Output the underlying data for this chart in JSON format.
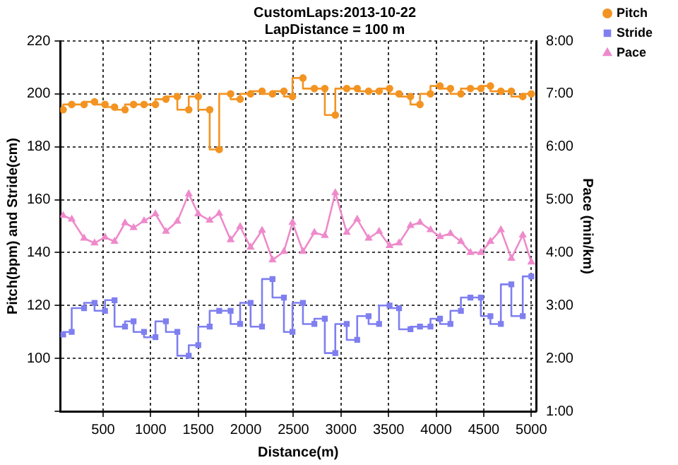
{
  "chart_data": {
    "type": "step",
    "title": "CustomLaps:2013-10-22",
    "subtitle": "LapDistance = 100 m",
    "xlabel": "Distance(m)",
    "ylabel": "Pitch(bpm) and Stride(cm)",
    "y2label": "Pace (min/km)",
    "x": [
      80,
      170,
      300,
      410,
      520,
      620,
      730,
      820,
      930,
      1050,
      1160,
      1280,
      1400,
      1500,
      1620,
      1720,
      1840,
      1940,
      2050,
      2170,
      2280,
      2400,
      2490,
      2600,
      2720,
      2830,
      2940,
      3060,
      3170,
      3290,
      3400,
      3510,
      3610,
      3730,
      3830,
      3940,
      4040,
      4150,
      4260,
      4360,
      4470,
      4570,
      4680,
      4790,
      4910,
      5000
    ],
    "series": [
      {
        "name": "Pitch",
        "color": "#f39422",
        "marker": "circle",
        "values": [
          194,
          196,
          196,
          197,
          196,
          195,
          194,
          196,
          196,
          196,
          198,
          199,
          194,
          199,
          194,
          179,
          200,
          198,
          200,
          201,
          200,
          201,
          199,
          206,
          202,
          202,
          192,
          202,
          202,
          201,
          201,
          202,
          200,
          199,
          196,
          200,
          203,
          202,
          200,
          202,
          202,
          203,
          201,
          201,
          199,
          200
        ]
      },
      {
        "name": "Stride",
        "color": "#7f7ff0",
        "marker": "square",
        "values": [
          109,
          110,
          119,
          121,
          118,
          122,
          112,
          114,
          110,
          108,
          114,
          110,
          101,
          105,
          112,
          118,
          118,
          113,
          121,
          112,
          130,
          123,
          110,
          121,
          113,
          115,
          102,
          113,
          107,
          116,
          113,
          120,
          119,
          111,
          112,
          112,
          115,
          113,
          118,
          123,
          123,
          116,
          113,
          128,
          116,
          131
        ]
      },
      {
        "name": "Pace",
        "type": "line",
        "axis": "y2",
        "color": "#ee8acb",
        "marker": "triangle",
        "values": [
          4.7,
          4.63,
          4.27,
          4.18,
          4.29,
          4.21,
          4.56,
          4.47,
          4.6,
          4.73,
          4.4,
          4.59,
          5.11,
          4.73,
          4.61,
          4.74,
          4.24,
          4.49,
          4.1,
          4.42,
          3.86,
          4.02,
          4.57,
          4.02,
          4.38,
          4.32,
          5.13,
          4.38,
          4.63,
          4.27,
          4.4,
          4.13,
          4.18,
          4.51,
          4.57,
          4.43,
          4.3,
          4.36,
          4.21,
          4.0,
          4.0,
          4.21,
          4.43,
          3.89,
          4.33,
          3.82
        ]
      }
    ],
    "xlim": [
      50,
      5050
    ],
    "xticks": [
      500,
      1000,
      1500,
      2000,
      2500,
      3000,
      3500,
      4000,
      4500,
      5000
    ],
    "ylim": [
      80,
      220
    ],
    "yticks": [
      {
        "value": 80,
        "label": null
      },
      100,
      120,
      140,
      160,
      180,
      200,
      220
    ],
    "y2lim": [
      1,
      8
    ],
    "y2ticks": [
      {
        "value": 1,
        "label": "1:00"
      },
      {
        "value": 2,
        "label": "2:00"
      },
      {
        "value": 3,
        "label": "3:00"
      },
      {
        "value": 4,
        "label": "4:00"
      },
      {
        "value": 5,
        "label": "5:00"
      },
      {
        "value": 6,
        "label": "6:00"
      },
      {
        "value": 7,
        "label": "7:00"
      },
      {
        "value": 8,
        "label": "8:00"
      }
    ],
    "grid": true,
    "legend": "top right"
  }
}
